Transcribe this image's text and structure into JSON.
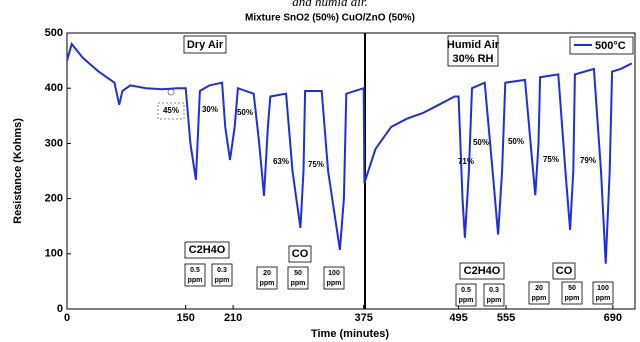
{
  "chart_data": {
    "type": "line",
    "title": "and humid air.",
    "subtitle": "Mixture SnO2 (50%) CuO/ZnO (50%)",
    "xlabel": "Time (minutes)",
    "ylabel": "Resistance (Kohms)",
    "xlim": [
      0,
      718
    ],
    "ylim": [
      0,
      500
    ],
    "xticks": [
      0,
      150,
      210,
      375,
      495,
      555,
      690
    ],
    "yticks": [
      0,
      100,
      200,
      300,
      400,
      500
    ],
    "grid": false,
    "legend": "upper right",
    "x": [
      0,
      6,
      20,
      40,
      60,
      66,
      70,
      80,
      100,
      120,
      140,
      150,
      156,
      163,
      168,
      180,
      196,
      200,
      206,
      212,
      216,
      236,
      243,
      249,
      254,
      257,
      277,
      285,
      295,
      299,
      301,
      322,
      330,
      345,
      350,
      353,
      375,
      376,
      390,
      410,
      430,
      450,
      470,
      490,
      495,
      500,
      503,
      508,
      512,
      528,
      538,
      545,
      550,
      554,
      579,
      586,
      592,
      596,
      598,
      621,
      630,
      636,
      640,
      642,
      666,
      675,
      681,
      686,
      689,
      700,
      714
    ],
    "series": [
      {
        "name": "500°C",
        "color": "#1f2fe0",
        "values": [
          450,
          480,
          455,
          430,
          410,
          370,
          395,
          405,
          400,
          398,
          400,
          400,
          300,
          234,
          395,
          405,
          410,
          330,
          270,
          330,
          400,
          390,
          300,
          205,
          330,
          385,
          390,
          250,
          147,
          250,
          395,
          395,
          250,
          107,
          200,
          390,
          400,
          228,
          290,
          330,
          345,
          355,
          370,
          385,
          385,
          200,
          129,
          250,
          400,
          410,
          250,
          135,
          250,
          410,
          415,
          300,
          206,
          300,
          420,
          425,
          250,
          143,
          250,
          425,
          435,
          250,
          82,
          250,
          430,
          435,
          445
        ]
      }
    ],
    "annotations": {
      "dry": "Dry Air",
      "humid": [
        "Humid Air",
        "30% RH"
      ],
      "percents": [
        "45%",
        "30%",
        "50%",
        "63%",
        "75%",
        "71%",
        "50%",
        "50%",
        "75%",
        "79%"
      ],
      "gases": [
        "C2H4O",
        "CO",
        "C2H4O",
        "CO"
      ],
      "ppm": [
        [
          "0.5",
          "ppm"
        ],
        [
          "0.3",
          "ppm"
        ],
        [
          "20",
          "ppm"
        ],
        [
          "50",
          "ppm"
        ],
        [
          "100",
          "ppm"
        ],
        [
          "0.5",
          "ppm"
        ],
        [
          "0.3",
          "ppm"
        ],
        [
          "20",
          "ppm"
        ],
        [
          "50",
          "ppm"
        ],
        [
          "100",
          "ppm"
        ]
      ]
    }
  }
}
